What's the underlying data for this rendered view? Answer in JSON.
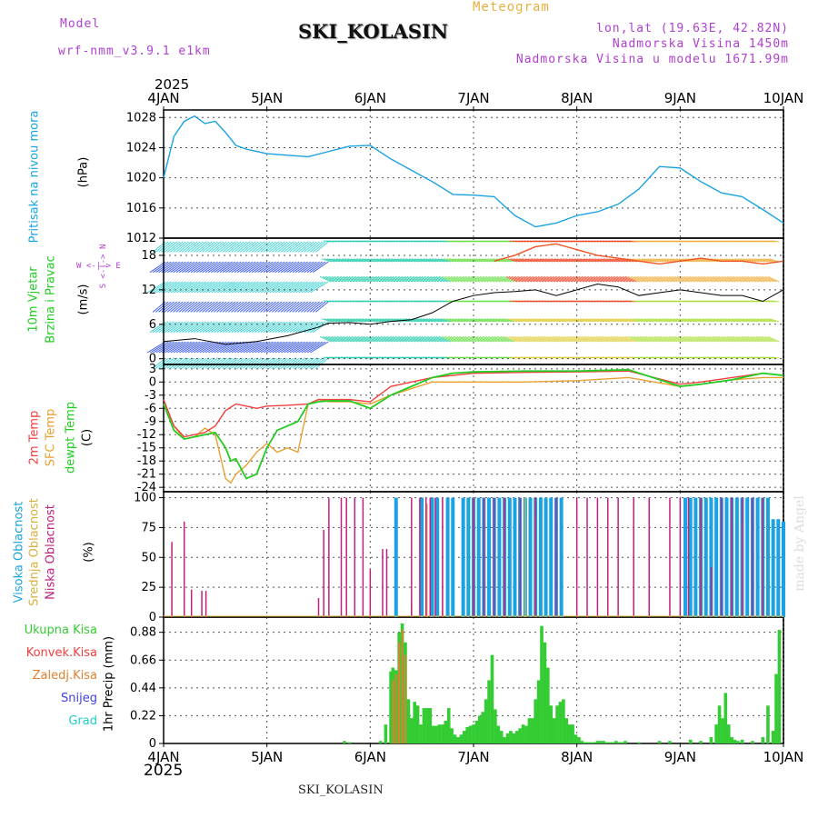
{
  "header": {
    "model_label": "Model",
    "model_name": "wrf-nmm_v3.9.1 e1km",
    "station": "SKI_KOLASIN",
    "meteogram": "Meteogram",
    "lonlat": "lon,lat (19.63E, 42.82N)",
    "altitude": "Nadmorska Visina 1450m",
    "model_altitude": "Nadmorska Visina u modelu 1671.99m",
    "year_top": "2025",
    "year_bottom": "2025",
    "footer_station": "SKI_KOLASIN",
    "credit": "made by Angel"
  },
  "colors": {
    "pressure": "#1aa3e0",
    "temp2m": "#f04040",
    "sfc": "#e8a030",
    "dewpt": "#22cc22",
    "high_cloud": "#1aa3e0",
    "mid_cloud": "#d8b040",
    "low_cloud": "#c02080",
    "precip_total": "#33cc33",
    "precip_freezing": "#e08030"
  },
  "chart_data": [
    {
      "type": "line",
      "panel": "pressure",
      "ylabel_1": "Pritisak na nivou mora",
      "ylabel_2": "(hPa)",
      "x_labels": [
        "4JAN",
        "5JAN",
        "6JAN",
        "7JAN",
        "8JAN",
        "9JAN",
        "10JAN"
      ],
      "ylim": [
        1012,
        1029
      ],
      "yticks": [
        1012,
        1016,
        1020,
        1024,
        1028
      ],
      "series": [
        {
          "name": "Pritisak na nivou mora",
          "x": [
            0,
            0.1,
            0.2,
            0.3,
            0.4,
            0.5,
            0.6,
            0.7,
            0.8,
            0.9,
            1.0,
            1.2,
            1.4,
            1.6,
            1.8,
            2.0,
            2.2,
            2.4,
            2.6,
            2.8,
            3.0,
            3.2,
            3.4,
            3.6,
            3.8,
            4.0,
            4.2,
            4.4,
            4.6,
            4.8,
            5.0,
            5.2,
            5.4,
            5.6,
            5.8,
            6.0
          ],
          "values": [
            1020,
            1025.5,
            1027.5,
            1028.2,
            1027.2,
            1027.5,
            1026,
            1024.3,
            1023.8,
            1023.5,
            1023.2,
            1023,
            1022.8,
            1023.5,
            1024.2,
            1024.3,
            1022.5,
            1021,
            1019.5,
            1017.8,
            1017.7,
            1017.5,
            1015,
            1013.5,
            1014,
            1015,
            1015.5,
            1016.5,
            1018.5,
            1021.5,
            1021.3,
            1019.5,
            1018,
            1017.5,
            1015.8,
            1014
          ]
        }
      ]
    },
    {
      "type": "line",
      "panel": "wind",
      "ylabel_1": "10m Vjetar",
      "ylabel_2": "Brzina i Pravac",
      "ylabel_3": "(m/s)",
      "compass": "W <-|-> E",
      "compass_v": "S <-|-> N",
      "ylim": [
        -1,
        21
      ],
      "yticks": [
        0,
        6,
        12,
        18
      ],
      "series": [
        {
          "name": "speed",
          "x": [
            0,
            0.3,
            0.6,
            0.9,
            1.2,
            1.5,
            1.6,
            1.8,
            2.0,
            2.2,
            2.4,
            2.6,
            2.8,
            3.0,
            3.2,
            3.4,
            3.6,
            3.8,
            4.0,
            4.2,
            4.4,
            4.6,
            4.8,
            5.0,
            5.2,
            5.4,
            5.6,
            5.8,
            6.0
          ],
          "values": [
            3,
            3.5,
            2.5,
            3,
            4,
            5.5,
            6.2,
            6.3,
            6,
            6.5,
            6.8,
            8,
            10,
            11,
            11.5,
            11.7,
            12,
            11,
            12,
            13,
            12.5,
            11,
            11.5,
            12,
            11.5,
            11,
            11,
            10,
            12
          ]
        },
        {
          "name": "gust",
          "x": [
            3.2,
            3.4,
            3.6,
            3.8,
            4.0,
            4.2,
            4.4,
            4.6,
            4.8,
            5.0,
            5.2,
            5.4,
            5.6,
            5.8,
            6.0
          ],
          "values": [
            17,
            18,
            19.5,
            20,
            19,
            18,
            17.5,
            17,
            16.5,
            17,
            17.5,
            17,
            17,
            16.5,
            17
          ]
        }
      ]
    },
    {
      "type": "line",
      "panel": "temperature",
      "ylabel_1": "2m Temp",
      "ylabel_2": "SFC Temp",
      "ylabel_3": "dewpt Temp",
      "ylabel_4": "(C)",
      "ylim": [
        -25,
        4
      ],
      "yticks": [
        3,
        0,
        -3,
        -6,
        -9,
        -12,
        -15,
        -18,
        -21,
        -24
      ],
      "series": [
        {
          "name": "2m Temp",
          "x": [
            0,
            0.1,
            0.2,
            0.3,
            0.4,
            0.5,
            0.6,
            0.7,
            0.8,
            0.9,
            1.0,
            1.2,
            1.4,
            1.5,
            1.6,
            1.8,
            2.0,
            2.2,
            2.4,
            2.6,
            2.8,
            3.0,
            3.5,
            4.0,
            4.5,
            5.0,
            5.2,
            5.5,
            5.8,
            6.0
          ],
          "values": [
            -4,
            -10,
            -12.5,
            -12,
            -11.5,
            -10,
            -6.5,
            -5,
            -5.5,
            -6,
            -5.5,
            -5.3,
            -5,
            -4,
            -4,
            -4,
            -4.5,
            -1,
            0,
            1,
            1.5,
            2,
            2.2,
            2.3,
            2.5,
            -0.5,
            0,
            1,
            2,
            1.5
          ]
        },
        {
          "name": "SFC Temp",
          "x": [
            0,
            0.1,
            0.2,
            0.3,
            0.4,
            0.5,
            0.6,
            0.65,
            0.7,
            0.8,
            0.9,
            0.95,
            1.0,
            1.1,
            1.2,
            1.3,
            1.4,
            1.5,
            1.6,
            1.8,
            2.0,
            2.2,
            2.4,
            2.6,
            2.8,
            3.0,
            3.5,
            4.0,
            4.5,
            5.0,
            5.2,
            5.5,
            5.8,
            6.0
          ],
          "values": [
            -5,
            -10,
            -13,
            -12.5,
            -10.5,
            -12,
            -22,
            -23,
            -21,
            -19,
            -16,
            -15,
            -14,
            -16,
            -15,
            -16,
            -5,
            -4,
            -4.5,
            -4.5,
            -5,
            -3,
            -1.5,
            0,
            0,
            0,
            0,
            0.3,
            1,
            -1,
            -0.5,
            0.5,
            1,
            1
          ]
        },
        {
          "name": "dewpt Temp",
          "x": [
            0,
            0.1,
            0.2,
            0.3,
            0.4,
            0.5,
            0.6,
            0.65,
            0.7,
            0.8,
            0.9,
            1.0,
            1.1,
            1.2,
            1.3,
            1.4,
            1.5,
            1.6,
            1.8,
            2.0,
            2.2,
            2.4,
            2.6,
            2.8,
            3.0,
            3.5,
            4.0,
            4.5,
            5.0,
            5.2,
            5.5,
            5.8,
            6.0
          ],
          "values": [
            -5,
            -11,
            -13,
            -12.5,
            -12,
            -11.5,
            -15,
            -18,
            -17.5,
            -22,
            -21,
            -15,
            -11,
            -10,
            -9,
            -5,
            -4.5,
            -4.3,
            -4.3,
            -6,
            -3,
            -1,
            1,
            2,
            2.3,
            2.5,
            2.5,
            2.8,
            -1,
            -0.5,
            0.5,
            2,
            1.5
          ]
        }
      ]
    },
    {
      "type": "bar",
      "panel": "cloud",
      "ylabel_1": "Visoka Oblacnost",
      "ylabel_2": "Srednja Oblacnost",
      "ylabel_3": "Niska Oblacnost",
      "ylabel_4": "(%)",
      "ylim": [
        0,
        105
      ],
      "yticks": [
        0,
        25,
        50,
        75,
        100
      ],
      "series": [
        {
          "name": "Niska Oblacnost",
          "x": [
            0.08,
            0.2,
            0.27,
            0.37,
            0.41,
            1.5,
            1.55,
            1.6,
            1.72,
            1.77,
            1.85,
            1.93,
            2.0,
            2.12,
            2.16,
            2.4,
            2.48,
            2.54,
            2.58,
            2.63,
            2.7,
            3.0,
            3.1,
            3.2,
            3.3,
            3.45,
            3.6,
            3.8,
            4.0,
            4.1,
            4.2,
            4.3,
            4.4,
            4.55,
            4.7,
            4.9,
            5.0,
            5.08,
            5.2,
            5.3,
            5.4,
            5.5,
            5.6,
            5.7,
            5.8
          ],
          "values": [
            63,
            80,
            23,
            22,
            22,
            16,
            73,
            100,
            100,
            100,
            100,
            100,
            40,
            57,
            57,
            100,
            100,
            100,
            100,
            100,
            100,
            100,
            100,
            100,
            100,
            100,
            100,
            100,
            100,
            100,
            100,
            100,
            100,
            100,
            100,
            100,
            100,
            100,
            100,
            42,
            100,
            100,
            100,
            100,
            100
          ]
        },
        {
          "name": "Visoka Oblacnost",
          "x": [
            2.25,
            2.5,
            2.6,
            2.65,
            2.75,
            2.8,
            2.9,
            2.95,
            3.0,
            3.05,
            3.1,
            3.15,
            3.2,
            3.25,
            3.3,
            3.35,
            3.4,
            3.45,
            3.5,
            3.55,
            3.6,
            3.65,
            3.7,
            3.75,
            3.8,
            3.85,
            5.05,
            5.1,
            5.15,
            5.2,
            5.25,
            5.3,
            5.35,
            5.4,
            5.45,
            5.5,
            5.55,
            5.6,
            5.65,
            5.7,
            5.75,
            5.8,
            5.85,
            5.9,
            5.95,
            6.0
          ],
          "values": [
            100,
            100,
            100,
            100,
            100,
            100,
            100,
            100,
            100,
            100,
            100,
            100,
            100,
            100,
            100,
            100,
            100,
            100,
            100,
            100,
            100,
            100,
            100,
            100,
            100,
            100,
            100,
            100,
            100,
            100,
            100,
            100,
            100,
            100,
            100,
            100,
            100,
            100,
            100,
            100,
            100,
            100,
            100,
            82,
            82,
            80
          ]
        },
        {
          "name": "Srednja Oblacnost",
          "x": [
            2.4,
            2.55,
            2.7,
            3.2,
            3.5,
            3.6,
            5.6,
            5.8
          ],
          "values": [
            14,
            95,
            97,
            95,
            100,
            85,
            80,
            90
          ]
        }
      ]
    },
    {
      "type": "bar",
      "panel": "precip",
      "ylabel_1": "1hr Precip (mm)",
      "legend": [
        "Ukupna Kisa",
        "Konvek.Kisa",
        "Zaledj.Kisa",
        "Snijeg",
        "Grad"
      ],
      "ylim": [
        0,
        1.0
      ],
      "yticks": [
        0,
        0.22,
        0.44,
        0.66,
        0.88
      ],
      "series": [
        {
          "name": "Ukupna Kisa",
          "x": [
            1.75,
            1.8,
            2.1,
            2.15,
            2.2,
            2.22,
            2.25,
            2.28,
            2.31,
            2.34,
            2.37,
            2.4,
            2.43,
            2.46,
            2.49,
            2.52,
            2.55,
            2.58,
            2.61,
            2.64,
            2.67,
            2.7,
            2.73,
            2.76,
            2.79,
            2.82,
            2.85,
            2.88,
            2.91,
            2.94,
            2.97,
            3.0,
            3.03,
            3.06,
            3.09,
            3.12,
            3.15,
            3.18,
            3.21,
            3.24,
            3.27,
            3.3,
            3.33,
            3.36,
            3.39,
            3.42,
            3.45,
            3.48,
            3.51,
            3.54,
            3.57,
            3.6,
            3.63,
            3.66,
            3.69,
            3.72,
            3.75,
            3.78,
            3.81,
            3.84,
            3.87,
            3.9,
            3.93,
            3.96,
            3.99,
            4.02,
            4.05,
            4.08,
            4.11,
            4.14,
            4.17,
            4.2,
            4.23,
            4.26,
            4.29,
            4.32,
            4.35,
            4.38,
            4.41,
            4.44,
            4.47,
            4.6,
            4.8,
            4.9,
            5.1,
            5.2,
            5.3,
            5.35,
            5.38,
            5.41,
            5.44,
            5.47,
            5.5,
            5.53,
            5.56,
            5.6,
            5.7,
            5.8,
            5.85,
            5.9,
            5.93,
            5.96
          ],
          "values": [
            0.02,
            0.01,
            0.02,
            0.15,
            0.57,
            0.6,
            0.58,
            0.88,
            0.95,
            0.8,
            0.35,
            0.2,
            0.33,
            0.3,
            0.15,
            0.28,
            0.28,
            0.28,
            0.14,
            0.14,
            0.15,
            0.15,
            0.18,
            0.28,
            0.12,
            0.07,
            0.05,
            0.07,
            0.1,
            0.13,
            0.14,
            0.15,
            0.18,
            0.22,
            0.25,
            0.35,
            0.5,
            0.7,
            0.27,
            0.14,
            0.1,
            0.05,
            0.08,
            0.1,
            0.08,
            0.1,
            0.12,
            0.15,
            0.14,
            0.2,
            0.2,
            0.35,
            0.5,
            0.93,
            0.8,
            0.6,
            0.3,
            0.2,
            0.3,
            0.33,
            0.35,
            0.2,
            0.15,
            0.15,
            0.07,
            0.05,
            0.02,
            0.01,
            0.01,
            0.01,
            0.01,
            0.02,
            0.02,
            0.02,
            0.01,
            0.01,
            0.01,
            0.02,
            0.01,
            0.01,
            0.02,
            0.01,
            0.02,
            0.02,
            0.03,
            0.02,
            0.05,
            0.15,
            0.3,
            0.2,
            0.4,
            0.15,
            0.05,
            0.03,
            0.02,
            0.03,
            0.02,
            0.05,
            0.3,
            0.1,
            0.55,
            0.9
          ]
        },
        {
          "name": "Zaledj.Kisa",
          "x": [
            2.22,
            2.25,
            2.28,
            2.31,
            2.34
          ],
          "values": [
            0.5,
            0.55,
            0.8,
            0.9,
            0.7
          ]
        }
      ]
    }
  ]
}
